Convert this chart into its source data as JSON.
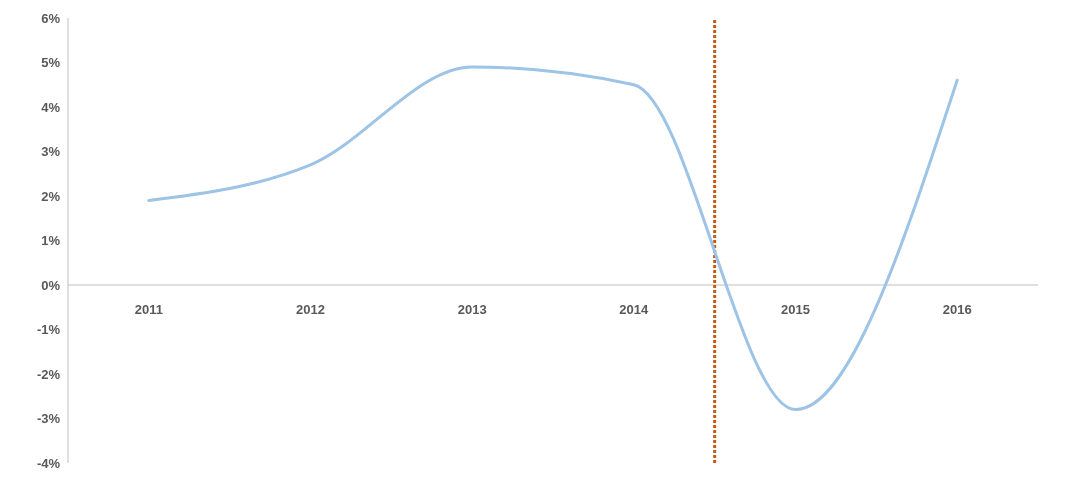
{
  "chart_data": {
    "type": "line",
    "x": [
      2011,
      2012,
      2013,
      2014,
      2015,
      2016
    ],
    "series": [
      {
        "color": "#9dc3e6",
        "values": [
          1.9,
          2.7,
          4.9,
          4.5,
          -2.8,
          4.6
        ]
      }
    ],
    "xlim": [
      2010.5,
      2016.5
    ],
    "xticks": [
      2011,
      2012,
      2013,
      2014,
      2015,
      2016
    ],
    "ylim": [
      -4,
      6
    ],
    "yticks": [
      {
        "value": -4,
        "label": "-4%"
      },
      {
        "value": -3,
        "label": "-3%"
      },
      {
        "value": -2,
        "label": "-2%"
      },
      {
        "value": -1,
        "label": "-1%"
      },
      {
        "value": 0,
        "label": "0%"
      },
      {
        "value": 1,
        "label": "1%"
      },
      {
        "value": 2,
        "label": "2%"
      },
      {
        "value": 3,
        "label": "3%"
      },
      {
        "value": 4,
        "label": "4%"
      },
      {
        "value": 5,
        "label": "5%"
      },
      {
        "value": 6,
        "label": "6%"
      }
    ],
    "ref_lines": [
      {
        "axis": "x",
        "value": 2014.5,
        "color": "#c55a11",
        "line_style": "dotted"
      }
    ],
    "grid": false,
    "legend": false,
    "marker": "none",
    "line_style": "solid"
  }
}
